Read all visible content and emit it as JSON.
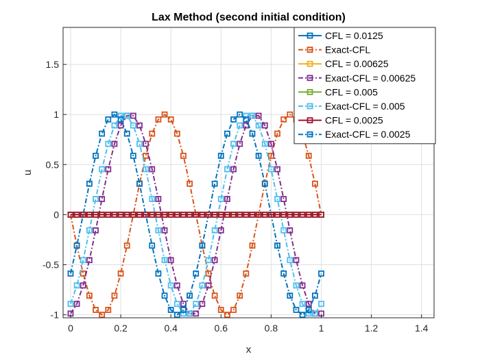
{
  "chart_data": {
    "type": "line",
    "title": "Lax Method (second initial condition)",
    "xlabel": "x",
    "ylabel": "u",
    "xlim": [
      -0.03,
      1.45
    ],
    "ylim": [
      -1.03,
      1.87
    ],
    "x_ticks": [
      0,
      0.2,
      0.4,
      0.6,
      0.8,
      1,
      1.2,
      1.4
    ],
    "x_tick_labels": [
      "0",
      "0.2",
      "0.4",
      "0.6",
      "0.8",
      "1",
      "1.2",
      "1.4"
    ],
    "y_ticks": [
      -1,
      -0.5,
      0,
      0.5,
      1,
      1.5
    ],
    "y_tick_labels": [
      "-1",
      "-0.5",
      "0",
      "0.5",
      "1",
      "1.5"
    ],
    "grid": true,
    "legend_position": "top-right",
    "x_start": 0,
    "x_end": 1,
    "x_step": 0.025,
    "series": [
      {
        "name": "CFL = 0.0125",
        "color": "#0072BD",
        "line": "solid",
        "marker": "square",
        "formula": "constant",
        "value": 0
      },
      {
        "name": "Exact-CFL",
        "color": "#D95319",
        "line": "dashdot",
        "marker": "square",
        "formula": "sine",
        "amplitude": 1,
        "period": 0.5,
        "peak_x": 0.375
      },
      {
        "name": "CFL = 0.00625",
        "color": "#EDB120",
        "line": "solid",
        "marker": "square",
        "formula": "constant",
        "value": 0
      },
      {
        "name": "Exact-CFL = 0.00625",
        "color": "#7E2F8E",
        "line": "dashdot",
        "marker": "square",
        "formula": "sine",
        "amplitude": 1,
        "period": 0.5,
        "peak_x": 0.2375
      },
      {
        "name": "CFL = 0.005",
        "color": "#77AC30",
        "line": "solid",
        "marker": "square",
        "formula": "constant",
        "value": 0
      },
      {
        "name": "Exact-CFL = 0.005",
        "color": "#4DBEEE",
        "line": "dashdot",
        "marker": "square",
        "formula": "sine",
        "amplitude": 1,
        "period": 0.5,
        "peak_x": 0.2125
      },
      {
        "name": "CFL = 0.0025",
        "color": "#A2142F",
        "line": "solid",
        "marker": "square",
        "formula": "constant",
        "value": 0
      },
      {
        "name": "Exact-CFL = 0.0025",
        "color": "#0072BD",
        "line": "dashdot",
        "marker": "square",
        "formula": "sine",
        "amplitude": 1,
        "period": 0.5,
        "peak_x": 0.175
      }
    ]
  }
}
